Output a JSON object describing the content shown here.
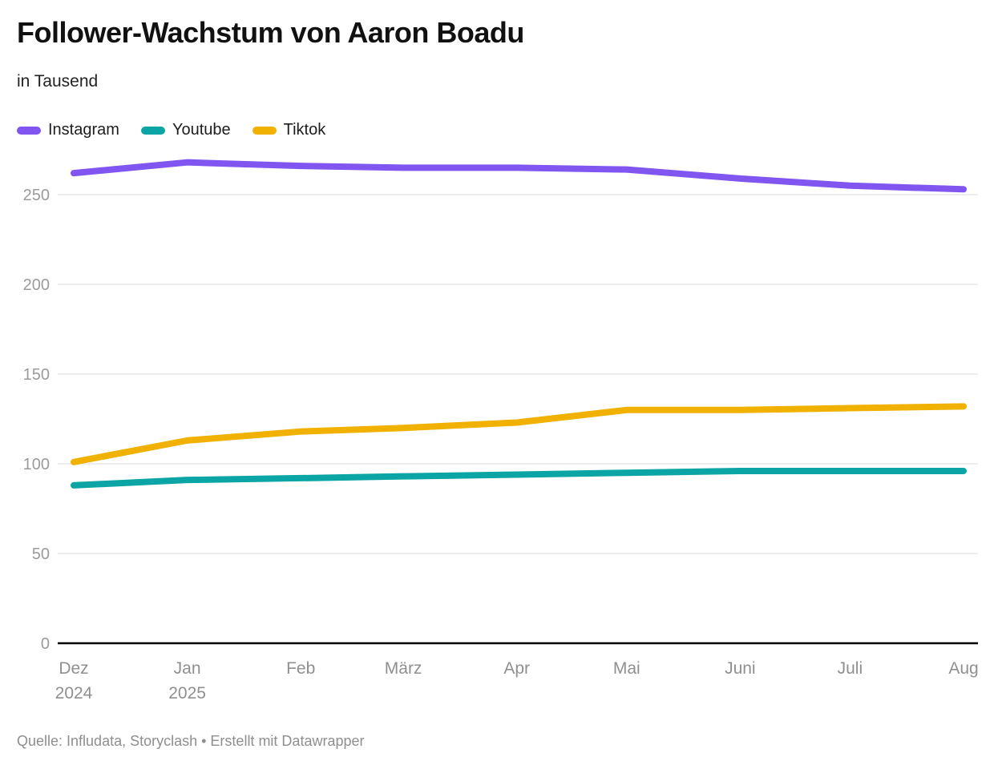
{
  "header": {
    "title": "Follower-Wachstum von Aaron Boadu",
    "subtitle": "in Tausend"
  },
  "footer": {
    "source": "Quelle: Infludata, Storyclash • Erstellt mit Datawrapper"
  },
  "colors": {
    "axis": "#000000",
    "grid": "#e7e7e7",
    "y_tick_label": "#9b9b9b",
    "x_tick_label": "#8f8f8f",
    "title": "#111111",
    "subtitle": "#222222",
    "source": "#8e8e8e"
  },
  "chart_data": {
    "type": "line",
    "title": "Follower-Wachstum von Aaron Boadu",
    "subtitle": "in Tausend",
    "categories": [
      "Dez 2024",
      "Jan 2025",
      "Feb",
      "März",
      "Apr",
      "Mai",
      "Juni",
      "Juli",
      "Aug"
    ],
    "x_tick_labels": [
      [
        "Dez",
        "2024"
      ],
      [
        "Jan",
        "2025"
      ],
      [
        "Feb"
      ],
      [
        "März"
      ],
      [
        "Apr"
      ],
      [
        "Mai"
      ],
      [
        "Juni"
      ],
      [
        "Juli"
      ],
      [
        "Aug"
      ]
    ],
    "series": [
      {
        "name": "Instagram",
        "color": "#8155ef",
        "values": [
          262,
          268,
          266,
          265,
          265,
          264,
          259,
          255,
          253
        ]
      },
      {
        "name": "Youtube",
        "color": "#0ba5a5",
        "values": [
          88,
          91,
          92,
          93,
          94,
          95,
          96,
          96,
          96
        ]
      },
      {
        "name": "Tiktok",
        "color": "#f0b100",
        "values": [
          101,
          113,
          118,
          120,
          123,
          130,
          130,
          131,
          132
        ]
      }
    ],
    "xlabel": "",
    "ylabel": "",
    "ylim": [
      0,
      275
    ],
    "yticks": [
      0,
      50,
      100,
      150,
      200,
      250
    ],
    "grid": true,
    "legend_position": "top-left"
  }
}
